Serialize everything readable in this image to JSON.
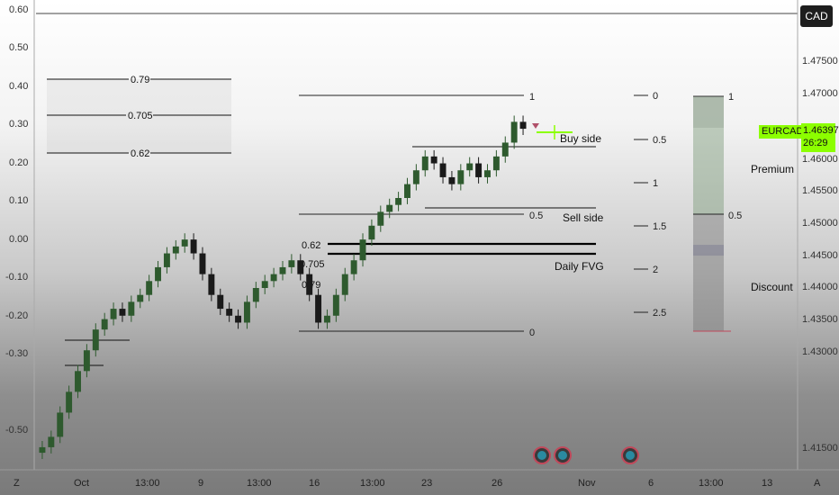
{
  "currency_button": "CAD",
  "symbol_tag": "EURCAD",
  "price_tag": {
    "price": "1.46397",
    "countdown": "26:29"
  },
  "left_axis": [
    "0.60",
    "0.50",
    "0.40",
    "0.30",
    "0.20",
    "0.10",
    "0.00",
    "-0.10",
    "-0.20",
    "-0.30",
    "-0.50"
  ],
  "right_axis": [
    "1.47500",
    "1.47000",
    "1.46500",
    "1.46000",
    "1.45500",
    "1.45000",
    "1.44500",
    "1.44000",
    "1.43500",
    "1.43000",
    "1.41500"
  ],
  "time_axis": [
    "Oct",
    "13:00",
    "9",
    "13:00",
    "16",
    "13:00",
    "23",
    "26",
    "Nov",
    "6",
    "13:00",
    "13"
  ],
  "scale_buttons": {
    "left": "Z",
    "right": "A"
  },
  "fib_box_levels": [
    "0.79",
    "0.705",
    "0.62"
  ],
  "fib_main_levels": [
    "1",
    "0.5",
    "0"
  ],
  "fib_extension_levels": [
    "0",
    "0.5",
    "1",
    "1.5",
    "2",
    "2.5"
  ],
  "zone_labels": {
    "buy_side": "Buy side",
    "sell_side": "Sell side",
    "daily_fvg": "Daily FVG",
    "premium": "Premium",
    "discount": "Discount",
    "pd_top": "1",
    "pd_mid": "0.5"
  },
  "fvg_levels": [
    "0.62",
    "0.705",
    "0.79"
  ],
  "colors": {
    "bull": "#2e5a2e",
    "bear": "#1a1a1a",
    "accent_green": "#8cff00",
    "premium_zone": "#7a9a78",
    "discount_zone": "#8a8a8a"
  },
  "event_icons": [
    "event-icon",
    "event-icon",
    "event-icon"
  ],
  "chart_data": {
    "type": "candlestick",
    "symbol": "EURCAD",
    "y_range": [
      1.415,
      1.48
    ],
    "last_price": 1.46397,
    "series": [
      {
        "name": "price",
        "close": [
          1.418,
          1.4195,
          1.423,
          1.426,
          1.429,
          1.432,
          1.435,
          1.4365,
          1.438,
          1.437,
          1.439,
          1.44,
          1.442,
          1.444,
          1.446,
          1.447,
          1.448,
          1.446,
          1.443,
          1.44,
          1.438,
          1.437,
          1.436,
          1.439,
          1.441,
          1.442,
          1.443,
          1.444,
          1.445,
          1.443,
          1.44,
          1.436,
          1.437,
          1.44,
          1.443,
          1.445,
          1.448,
          1.45,
          1.452,
          1.453,
          1.454,
          1.456,
          1.458,
          1.46,
          1.459,
          1.457,
          1.456,
          1.458,
          1.459,
          1.457,
          1.458,
          1.46,
          1.462,
          1.465,
          1.464
        ]
      }
    ]
  }
}
